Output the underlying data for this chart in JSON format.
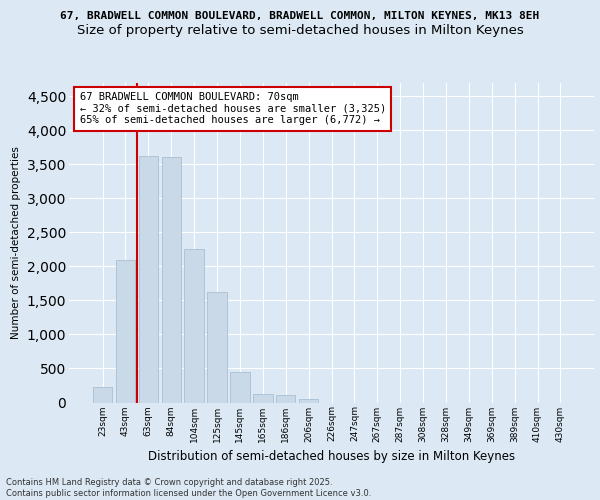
{
  "title_line1": "67, BRADWELL COMMON BOULEVARD, BRADWELL COMMON, MILTON KEYNES, MK13 8EH",
  "title_line2": "Size of property relative to semi-detached houses in Milton Keynes",
  "xlabel": "Distribution of semi-detached houses by size in Milton Keynes",
  "ylabel": "Number of semi-detached properties",
  "footnote": "Contains HM Land Registry data © Crown copyright and database right 2025.\nContains public sector information licensed under the Open Government Licence v3.0.",
  "categories": [
    "23sqm",
    "43sqm",
    "63sqm",
    "84sqm",
    "104sqm",
    "125sqm",
    "145sqm",
    "165sqm",
    "186sqm",
    "206sqm",
    "226sqm",
    "247sqm",
    "267sqm",
    "287sqm",
    "308sqm",
    "328sqm",
    "349sqm",
    "369sqm",
    "389sqm",
    "410sqm",
    "430sqm"
  ],
  "values": [
    230,
    2100,
    3625,
    3600,
    2250,
    1625,
    450,
    130,
    110,
    55,
    0,
    0,
    0,
    0,
    0,
    0,
    0,
    0,
    0,
    0,
    0
  ],
  "bar_color": "#c9d9e8",
  "bar_edge_color": "#a0b8cc",
  "highlight_color": "#cc0000",
  "highlight_index": 2,
  "annotation_text": "67 BRADWELL COMMON BOULEVARD: 70sqm\n← 32% of semi-detached houses are smaller (3,325)\n65% of semi-detached houses are larger (6,772) →",
  "ylim": [
    0,
    4700
  ],
  "yticks": [
    0,
    500,
    1000,
    1500,
    2000,
    2500,
    3000,
    3500,
    4000,
    4500
  ],
  "background_color": "#dce9f5",
  "plot_bg_color": "#dce9f5",
  "grid_color": "#ffffff",
  "title1_fontsize": 8,
  "title2_fontsize": 9.5,
  "annotation_box_edge": "#cc0000",
  "annotation_fontsize": 7.5
}
